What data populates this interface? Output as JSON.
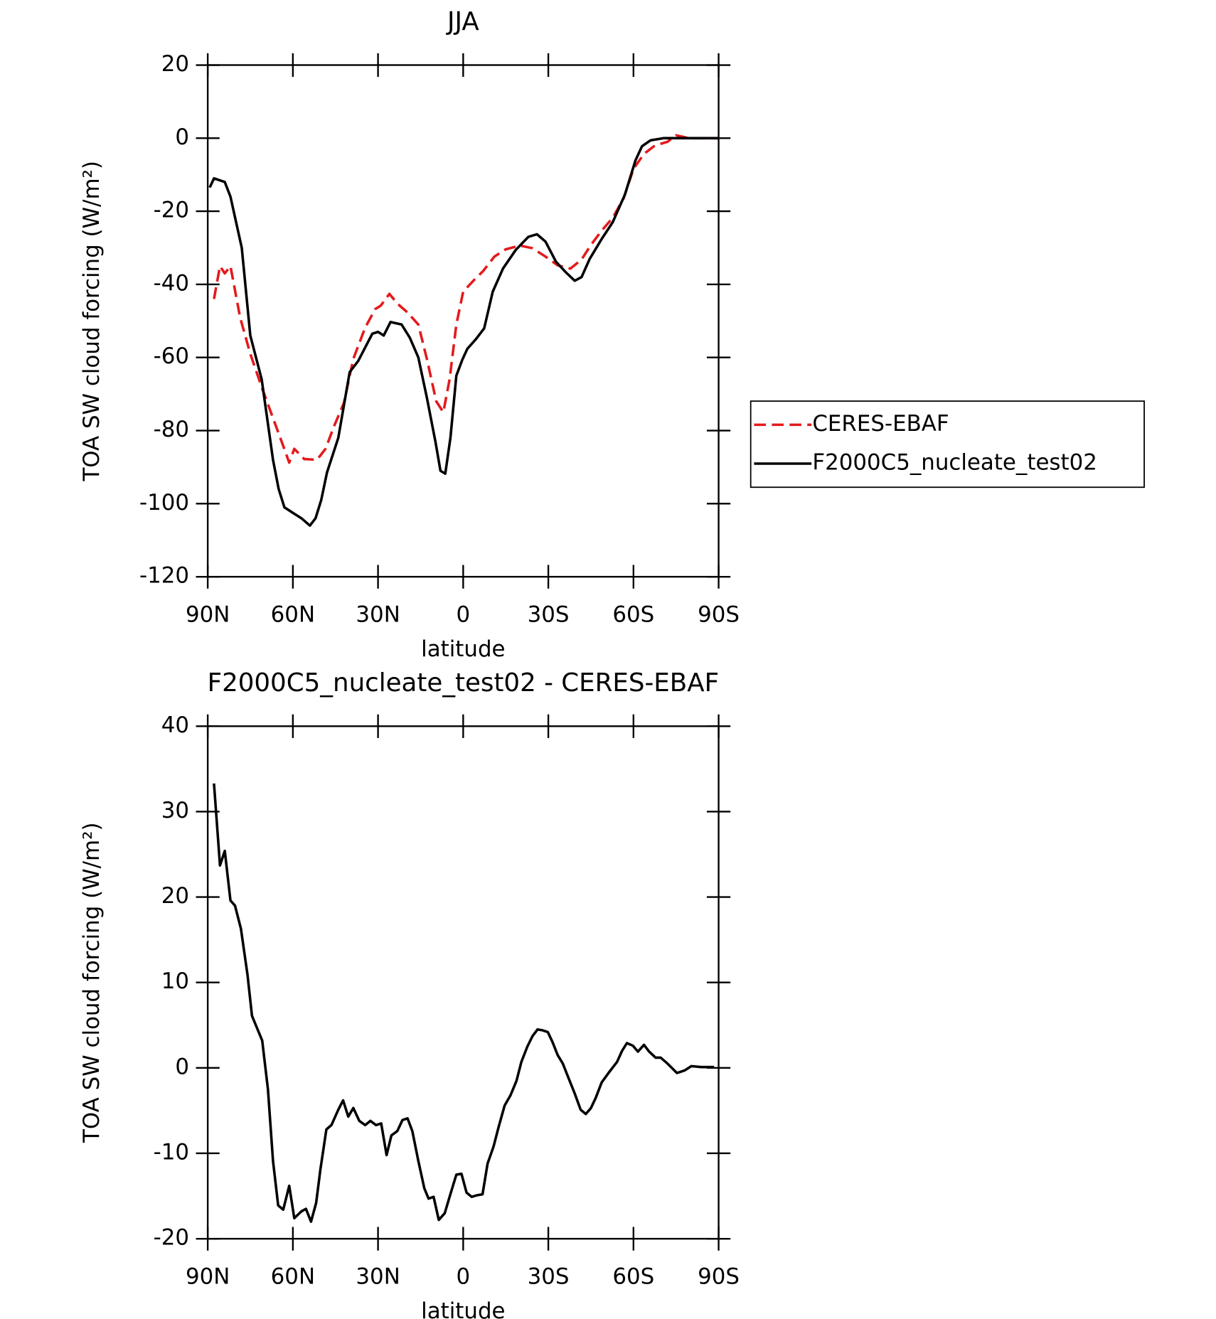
{
  "chart_data": [
    {
      "type": "line",
      "title": "JJA",
      "xlabel": "latitude",
      "ylabel": "TOA SW cloud forcing (W/m²)",
      "xlim": [
        90,
        -90
      ],
      "xticks": [
        {
          "value": 90,
          "label": "90N"
        },
        {
          "value": 60,
          "label": "60N"
        },
        {
          "value": 30,
          "label": "30N"
        },
        0,
        {
          "value": -30,
          "label": "30S"
        },
        {
          "value": -60,
          "label": "60S"
        },
        {
          "value": -90,
          "label": "90S"
        }
      ],
      "ylim": [
        -120,
        20
      ],
      "yticks": [
        -120,
        -100,
        -80,
        -60,
        -40,
        -20,
        0,
        20
      ],
      "legend": "right",
      "series": [
        {
          "name": "CERES-EBAF",
          "color": "#e31a1c",
          "linestyle": "dashed",
          "x": [
            87.8,
            85.7,
            84,
            82,
            78.6,
            75,
            70.8,
            67,
            64.3,
            61.3,
            59.5,
            56,
            51.5,
            48.5,
            45.5,
            42,
            38.7,
            34.5,
            31,
            29,
            26,
            23,
            19.6,
            15.8,
            12.8,
            9.5,
            7,
            4.8,
            2.4,
            0,
            -3.6,
            -7,
            -11,
            -15,
            -20,
            -24.4,
            -29,
            -33.3,
            -37.8,
            -41.7,
            -45,
            -48.8,
            -52.7,
            -56.5,
            -60,
            -63.7,
            -67.6,
            -72,
            -75,
            -79.5,
            -90
          ],
          "values": [
            -44,
            -35,
            -37,
            -35,
            -49,
            -59,
            -68.5,
            -76.6,
            -82.3,
            -88.8,
            -85,
            -87.8,
            -88,
            -85,
            -78.8,
            -72.4,
            -60.4,
            -51.8,
            -46.8,
            -45.8,
            -42.6,
            -45.4,
            -47.7,
            -51,
            -60.4,
            -72,
            -75,
            -66,
            -51,
            -42,
            -39,
            -36.4,
            -32.4,
            -30.4,
            -29.4,
            -30.1,
            -32.4,
            -34.8,
            -35.7,
            -33.2,
            -29.2,
            -25.3,
            -21.8,
            -16.5,
            -8.4,
            -4.3,
            -2,
            -1,
            0.8,
            0,
            0
          ]
        },
        {
          "name": "F2000C5_nucleate_test02",
          "color": "#000000",
          "linestyle": "solid",
          "x": [
            89.3,
            87.8,
            84,
            82,
            78,
            75,
            71,
            67,
            65,
            63,
            60,
            57,
            54,
            52,
            50,
            48,
            44,
            40,
            37,
            32,
            30,
            28,
            25.6,
            21.7,
            18.8,
            15.8,
            12.8,
            9.8,
            8,
            6.3,
            4.5,
            2.4,
            0.3,
            -1.5,
            -4.5,
            -7.4,
            -10.4,
            -14,
            -18.5,
            -23,
            -26,
            -29,
            -32.7,
            -36.3,
            -39.3,
            -41.7,
            -44.6,
            -48.8,
            -52.7,
            -57,
            -60.7,
            -63,
            -66,
            -70.5,
            -90
          ],
          "values": [
            -13.5,
            -11,
            -12,
            -16,
            -30,
            -54,
            -66,
            -88,
            -96,
            -101,
            -102.5,
            -104,
            -106,
            -104,
            -99,
            -91.5,
            -82,
            -64,
            -61,
            -53.5,
            -53,
            -54,
            -50.3,
            -51,
            -54.6,
            -60,
            -71,
            -83,
            -91,
            -91.8,
            -82,
            -65,
            -60.6,
            -57.6,
            -55,
            -52,
            -42,
            -35.7,
            -30.6,
            -27,
            -26.3,
            -28.3,
            -33.8,
            -36.8,
            -39,
            -38,
            -33,
            -27.6,
            -23,
            -15.4,
            -6.1,
            -2.2,
            -0.6,
            0,
            0
          ]
        }
      ]
    },
    {
      "type": "line",
      "title": "F2000C5_nucleate_test02 - CERES-EBAF",
      "xlabel": "latitude",
      "ylabel": "TOA SW cloud forcing (W/m²)",
      "xlim": [
        90,
        -90
      ],
      "xticks": [
        {
          "value": 90,
          "label": "90N"
        },
        {
          "value": 60,
          "label": "60N"
        },
        {
          "value": 30,
          "label": "30N"
        },
        0,
        {
          "value": -30,
          "label": "30S"
        },
        {
          "value": -60,
          "label": "60S"
        },
        {
          "value": -90,
          "label": "90S"
        }
      ],
      "ylim": [
        -20,
        40
      ],
      "yticks": [
        -20,
        -10,
        0,
        10,
        20,
        30,
        40
      ],
      "series": [
        {
          "color": "#000000",
          "linestyle": "solid",
          "x": [
            87.8,
            85.7,
            84,
            82,
            80.4,
            78.3,
            76,
            74.4,
            70.8,
            68.8,
            67,
            65.2,
            63.4,
            61.3,
            59.5,
            57,
            55.4,
            53.6,
            51.8,
            50.3,
            48.2,
            46.4,
            44,
            42.3,
            40.5,
            38.7,
            36.6,
            34.5,
            32.7,
            30.7,
            28.9,
            27,
            25.3,
            23.2,
            21.4,
            19.6,
            17.9,
            15.8,
            13.7,
            12.2,
            10.4,
            8.6,
            6.5,
            4.8,
            2.4,
            0.6,
            -1.2,
            -3,
            -5,
            -6.8,
            -8.6,
            -10.7,
            -12.5,
            -14.6,
            -16.7,
            -18.8,
            -20.5,
            -22.6,
            -24.4,
            -26.2,
            -28,
            -29.8,
            -31.5,
            -33.3,
            -35.1,
            -36.9,
            -39.3,
            -41.4,
            -43.2,
            -45,
            -46.7,
            -48.8,
            -51.2,
            -54.2,
            -56,
            -57.7,
            -59.8,
            -61.6,
            -63.7,
            -65.5,
            -67.8,
            -69.6,
            -72,
            -75.3,
            -78,
            -80.4,
            -83.9,
            -88.4
          ],
          "values": [
            33.3,
            23.7,
            25.4,
            19.6,
            19,
            16.3,
            10.9,
            6.1,
            3.2,
            -2.5,
            -10.9,
            -16.1,
            -16.6,
            -13.8,
            -17.6,
            -16.8,
            -16.5,
            -18,
            -15.8,
            -11.9,
            -7.2,
            -6.7,
            -4.9,
            -3.8,
            -5.7,
            -4.7,
            -6.2,
            -6.7,
            -6.2,
            -6.7,
            -6.5,
            -10.2,
            -7.9,
            -7.4,
            -6.1,
            -5.9,
            -7.4,
            -10.9,
            -14.1,
            -15.3,
            -15.1,
            -17.8,
            -17,
            -15.1,
            -12.5,
            -12.4,
            -14.6,
            -15.1,
            -14.9,
            -14.8,
            -11.2,
            -9.2,
            -6.9,
            -4.4,
            -3.2,
            -1.5,
            0.7,
            2.5,
            3.7,
            4.5,
            4.4,
            4.2,
            3,
            1.5,
            0.5,
            -1,
            -3,
            -4.9,
            -5.4,
            -4.7,
            -3.5,
            -1.7,
            -0.6,
            0.7,
            2,
            2.9,
            2.6,
            1.9,
            2.7,
            1.9,
            1.2,
            1.2,
            0.5,
            -0.6,
            -0.3,
            0.2,
            0.1,
            0.1
          ]
        }
      ]
    }
  ]
}
